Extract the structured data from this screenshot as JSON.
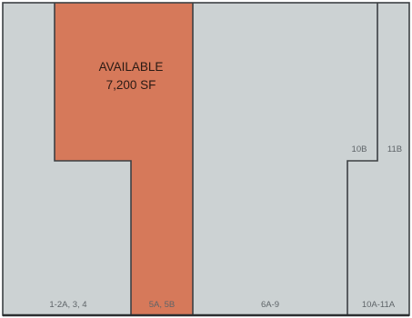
{
  "colors": {
    "unit_fill": "#ccd2d3",
    "available_fill": "#d6795a",
    "wall": "#3c4043",
    "label_text": "#5e6468",
    "available_text": "#2a1a14"
  },
  "available": {
    "status": "AVAILABLE",
    "area": "7,200 SF"
  },
  "units": {
    "u1": "1-2A, 3, 4",
    "u5": "5A, 5B",
    "u6": "6A-9",
    "u10b": "10B",
    "u11b": "11B",
    "u10a": "10A-11A"
  }
}
